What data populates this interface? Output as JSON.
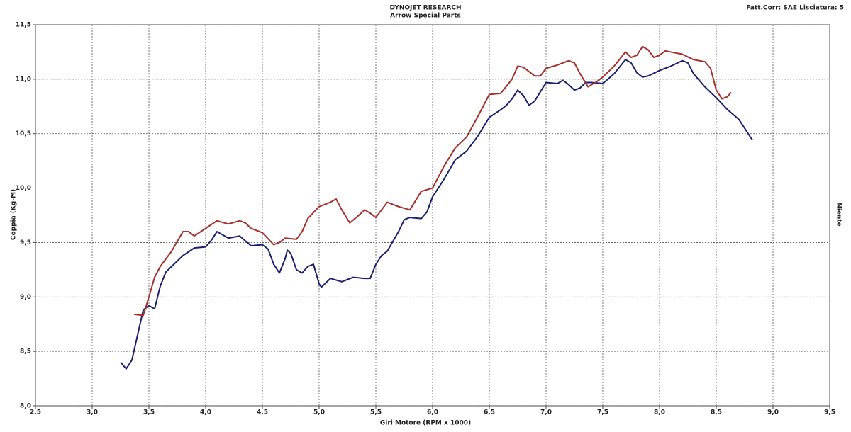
{
  "chart_data": {
    "type": "line",
    "title": "DYNOJET RESEARCH",
    "subtitle": "Arrow Special Parts",
    "annotation": "Fatt.Corr: SAE  Lisciatura: 5",
    "right_label": "Niente",
    "x_label": "Giri Motore (RPM x 1000)",
    "y_label": "Coppia (Kg-M)",
    "grid": true,
    "xlim": [
      2.5,
      9.5
    ],
    "ylim": [
      8.0,
      11.5
    ],
    "xticks": [
      {
        "value": 2.5,
        "label": "2,5"
      },
      {
        "value": 3.0,
        "label": "3,0"
      },
      {
        "value": 3.5,
        "label": "3,5"
      },
      {
        "value": 4.0,
        "label": "4,0"
      },
      {
        "value": 4.5,
        "label": "4,5"
      },
      {
        "value": 5.0,
        "label": "5,0"
      },
      {
        "value": 5.5,
        "label": "5,5"
      },
      {
        "value": 6.0,
        "label": "6,0"
      },
      {
        "value": 6.5,
        "label": "6,5"
      },
      {
        "value": 7.0,
        "label": "7,0"
      },
      {
        "value": 7.5,
        "label": "7,5"
      },
      {
        "value": 8.0,
        "label": "8,0"
      },
      {
        "value": 8.5,
        "label": "8,5"
      },
      {
        "value": 9.0,
        "label": "9,0"
      },
      {
        "value": 9.5,
        "label": "9,5"
      }
    ],
    "yticks": [
      {
        "value": 8.0,
        "label": "8,0"
      },
      {
        "value": 8.5,
        "label": "8,5"
      },
      {
        "value": 9.0,
        "label": "9,0"
      },
      {
        "value": 9.5,
        "label": "9,5"
      },
      {
        "value": 10.0,
        "label": "10,0"
      },
      {
        "value": 10.5,
        "label": "10,5"
      },
      {
        "value": 11.0,
        "label": "11,0"
      },
      {
        "value": 11.5,
        "label": "11,5"
      }
    ],
    "series": [
      {
        "color": "#1b1f73",
        "x": [
          3.25,
          3.3,
          3.35,
          3.4,
          3.45,
          3.5,
          3.55,
          3.6,
          3.65,
          3.7,
          3.8,
          3.9,
          4.0,
          4.05,
          4.1,
          4.2,
          4.3,
          4.4,
          4.5,
          4.55,
          4.6,
          4.65,
          4.7,
          4.72,
          4.75,
          4.8,
          4.85,
          4.9,
          4.95,
          5.0,
          5.02,
          5.1,
          5.2,
          5.3,
          5.4,
          5.45,
          5.5,
          5.55,
          5.6,
          5.7,
          5.75,
          5.8,
          5.9,
          5.95,
          6.0,
          6.1,
          6.2,
          6.3,
          6.4,
          6.5,
          6.6,
          6.65,
          6.7,
          6.75,
          6.8,
          6.85,
          6.9,
          7.0,
          7.1,
          7.15,
          7.2,
          7.25,
          7.3,
          7.35,
          7.4,
          7.5,
          7.6,
          7.7,
          7.75,
          7.8,
          7.85,
          7.9,
          8.0,
          8.1,
          8.2,
          8.25,
          8.3,
          8.4,
          8.5,
          8.6,
          8.7,
          8.8,
          8.82
        ],
        "values": [
          8.4,
          8.34,
          8.42,
          8.65,
          8.88,
          8.92,
          8.89,
          9.1,
          9.23,
          9.28,
          9.38,
          9.45,
          9.46,
          9.52,
          9.6,
          9.54,
          9.56,
          9.47,
          9.48,
          9.44,
          9.3,
          9.22,
          9.35,
          9.43,
          9.4,
          9.25,
          9.22,
          9.28,
          9.3,
          9.12,
          9.09,
          9.17,
          9.14,
          9.18,
          9.17,
          9.17,
          9.3,
          9.38,
          9.42,
          9.6,
          9.71,
          9.73,
          9.72,
          9.78,
          9.92,
          10.08,
          10.26,
          10.34,
          10.48,
          10.65,
          10.72,
          10.76,
          10.82,
          10.9,
          10.85,
          10.76,
          10.8,
          10.97,
          10.96,
          10.99,
          10.95,
          10.9,
          10.92,
          10.97,
          10.97,
          10.96,
          11.05,
          11.18,
          11.15,
          11.06,
          11.02,
          11.03,
          11.08,
          11.12,
          11.17,
          11.15,
          11.05,
          10.93,
          10.83,
          10.72,
          10.63,
          10.47,
          10.44
        ]
      },
      {
        "color": "#a8302a",
        "x": [
          3.37,
          3.45,
          3.5,
          3.55,
          3.6,
          3.7,
          3.8,
          3.85,
          3.9,
          4.0,
          4.1,
          4.2,
          4.3,
          4.35,
          4.4,
          4.5,
          4.6,
          4.65,
          4.7,
          4.8,
          4.85,
          4.9,
          5.0,
          5.1,
          5.15,
          5.2,
          5.27,
          5.35,
          5.4,
          5.45,
          5.5,
          5.6,
          5.7,
          5.8,
          5.9,
          6.0,
          6.1,
          6.2,
          6.3,
          6.4,
          6.5,
          6.6,
          6.7,
          6.75,
          6.8,
          6.9,
          6.95,
          7.0,
          7.1,
          7.2,
          7.25,
          7.3,
          7.37,
          7.45,
          7.5,
          7.6,
          7.7,
          7.75,
          7.8,
          7.85,
          7.9,
          7.95,
          8.0,
          8.05,
          8.1,
          8.2,
          8.3,
          8.4,
          8.45,
          8.5,
          8.55,
          8.6,
          8.63
        ],
        "values": [
          8.84,
          8.83,
          9.0,
          9.18,
          9.28,
          9.42,
          9.6,
          9.6,
          9.56,
          9.63,
          9.7,
          9.67,
          9.7,
          9.68,
          9.63,
          9.59,
          9.48,
          9.5,
          9.54,
          9.53,
          9.6,
          9.72,
          9.83,
          9.87,
          9.9,
          9.8,
          9.68,
          9.75,
          9.8,
          9.77,
          9.73,
          9.87,
          9.83,
          9.8,
          9.97,
          10.0,
          10.2,
          10.37,
          10.47,
          10.66,
          10.86,
          10.87,
          11.0,
          11.12,
          11.11,
          11.03,
          11.03,
          11.1,
          11.13,
          11.17,
          11.15,
          11.05,
          10.93,
          10.98,
          11.02,
          11.12,
          11.25,
          11.2,
          11.22,
          11.3,
          11.27,
          11.2,
          11.22,
          11.26,
          11.25,
          11.23,
          11.18,
          11.16,
          11.1,
          10.9,
          10.82,
          10.84,
          10.88
        ]
      }
    ]
  }
}
